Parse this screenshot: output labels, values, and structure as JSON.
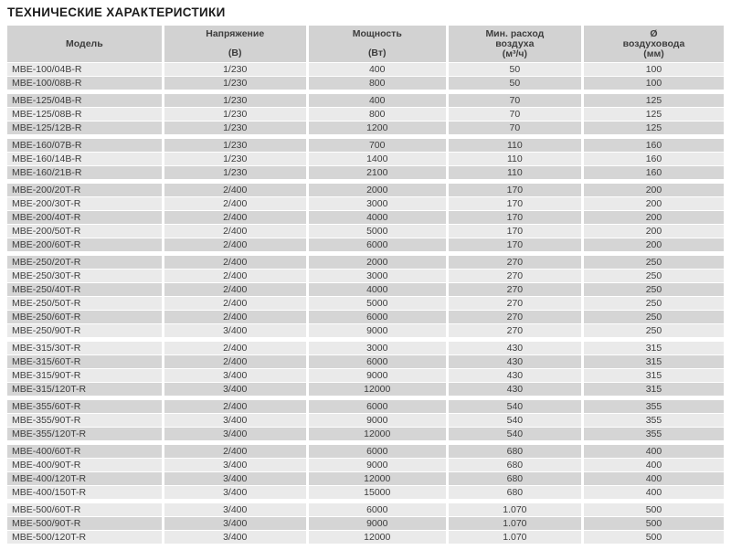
{
  "title": "ТЕХНИЧЕСКИЕ ХАРАКТЕРИСТИКИ",
  "colors": {
    "page_bg": "#ffffff",
    "header_bg": "#d2d2d2",
    "row_dark": "#d5d5d5",
    "row_light": "#eaeaea",
    "text": "#3d3d3d",
    "title": "#1c1c1c"
  },
  "table": {
    "columns": [
      {
        "key": "model",
        "label_lines": [
          "Модель"
        ],
        "unit": ""
      },
      {
        "key": "voltage",
        "label_lines": [
          "Напряжение"
        ],
        "unit": "(В)"
      },
      {
        "key": "power",
        "label_lines": [
          "Мощность"
        ],
        "unit": "(Вт)"
      },
      {
        "key": "airflow",
        "label_lines": [
          "Мин. расход",
          "воздуха"
        ],
        "unit": "(м³/ч)"
      },
      {
        "key": "diameter",
        "label_lines": [
          "Ø",
          "воздуховода"
        ],
        "unit": "(мм)"
      }
    ],
    "groups": [
      {
        "rows": [
          {
            "model": "MBE-100/04B-R",
            "voltage": "1/230",
            "power": "400",
            "airflow": "50",
            "diameter": "100"
          },
          {
            "model": "MBE-100/08B-R",
            "voltage": "1/230",
            "power": "800",
            "airflow": "50",
            "diameter": "100"
          }
        ]
      },
      {
        "rows": [
          {
            "model": "MBE-125/04B-R",
            "voltage": "1/230",
            "power": "400",
            "airflow": "70",
            "diameter": "125"
          },
          {
            "model": "MBE-125/08B-R",
            "voltage": "1/230",
            "power": "800",
            "airflow": "70",
            "diameter": "125"
          },
          {
            "model": "MBE-125/12B-R",
            "voltage": "1/230",
            "power": "1200",
            "airflow": "70",
            "diameter": "125"
          }
        ]
      },
      {
        "rows": [
          {
            "model": "MBE-160/07B-R",
            "voltage": "1/230",
            "power": "700",
            "airflow": "110",
            "diameter": "160"
          },
          {
            "model": "MBE-160/14B-R",
            "voltage": "1/230",
            "power": "1400",
            "airflow": "110",
            "diameter": "160"
          },
          {
            "model": "MBE-160/21B-R",
            "voltage": "1/230",
            "power": "2100",
            "airflow": "110",
            "diameter": "160"
          }
        ]
      },
      {
        "rows": [
          {
            "model": "MBE-200/20T-R",
            "voltage": "2/400",
            "power": "2000",
            "airflow": "170",
            "diameter": "200"
          },
          {
            "model": "MBE-200/30T-R",
            "voltage": "2/400",
            "power": "3000",
            "airflow": "170",
            "diameter": "200"
          },
          {
            "model": "MBE-200/40T-R",
            "voltage": "2/400",
            "power": "4000",
            "airflow": "170",
            "diameter": "200"
          },
          {
            "model": "MBE-200/50T-R",
            "voltage": "2/400",
            "power": "5000",
            "airflow": "170",
            "diameter": "200"
          },
          {
            "model": "MBE-200/60T-R",
            "voltage": "2/400",
            "power": "6000",
            "airflow": "170",
            "diameter": "200"
          }
        ]
      },
      {
        "rows": [
          {
            "model": "MBE-250/20T-R",
            "voltage": "2/400",
            "power": "2000",
            "airflow": "270",
            "diameter": "250"
          },
          {
            "model": "MBE-250/30T-R",
            "voltage": "2/400",
            "power": "3000",
            "airflow": "270",
            "diameter": "250"
          },
          {
            "model": "MBE-250/40T-R",
            "voltage": "2/400",
            "power": "4000",
            "airflow": "270",
            "diameter": "250"
          },
          {
            "model": "MBE-250/50T-R",
            "voltage": "2/400",
            "power": "5000",
            "airflow": "270",
            "diameter": "250"
          },
          {
            "model": "MBE-250/60T-R",
            "voltage": "2/400",
            "power": "6000",
            "airflow": "270",
            "diameter": "250"
          },
          {
            "model": "MBE-250/90T-R",
            "voltage": "3/400",
            "power": "9000",
            "airflow": "270",
            "diameter": "250"
          }
        ]
      },
      {
        "rows": [
          {
            "model": "MBE-315/30T-R",
            "voltage": "2/400",
            "power": "3000",
            "airflow": "430",
            "diameter": "315"
          },
          {
            "model": "MBE-315/60T-R",
            "voltage": "2/400",
            "power": "6000",
            "airflow": "430",
            "diameter": "315"
          },
          {
            "model": "MBE-315/90T-R",
            "voltage": "3/400",
            "power": "9000",
            "airflow": "430",
            "diameter": "315"
          },
          {
            "model": "MBE-315/120T-R",
            "voltage": "3/400",
            "power": "12000",
            "airflow": "430",
            "diameter": "315"
          }
        ]
      },
      {
        "rows": [
          {
            "model": "MBE-355/60T-R",
            "voltage": "2/400",
            "power": "6000",
            "airflow": "540",
            "diameter": "355"
          },
          {
            "model": "MBE-355/90T-R",
            "voltage": "3/400",
            "power": "9000",
            "airflow": "540",
            "diameter": "355"
          },
          {
            "model": "MBE-355/120T-R",
            "voltage": "3/400",
            "power": "12000",
            "airflow": "540",
            "diameter": "355"
          }
        ]
      },
      {
        "rows": [
          {
            "model": "MBE-400/60T-R",
            "voltage": "2/400",
            "power": "6000",
            "airflow": "680",
            "diameter": "400"
          },
          {
            "model": "MBE-400/90T-R",
            "voltage": "3/400",
            "power": "9000",
            "airflow": "680",
            "diameter": "400"
          },
          {
            "model": "MBE-400/120T-R",
            "voltage": "3/400",
            "power": "12000",
            "airflow": "680",
            "diameter": "400"
          },
          {
            "model": "MBE-400/150T-R",
            "voltage": "3/400",
            "power": "15000",
            "airflow": "680",
            "diameter": "400"
          }
        ]
      },
      {
        "rows": [
          {
            "model": "MBE-500/60T-R",
            "voltage": "3/400",
            "power": "6000",
            "airflow": "1.070",
            "diameter": "500"
          },
          {
            "model": "MBE-500/90T-R",
            "voltage": "3/400",
            "power": "9000",
            "airflow": "1.070",
            "diameter": "500"
          },
          {
            "model": "MBE-500/120T-R",
            "voltage": "3/400",
            "power": "12000",
            "airflow": "1.070",
            "diameter": "500"
          }
        ]
      }
    ]
  }
}
